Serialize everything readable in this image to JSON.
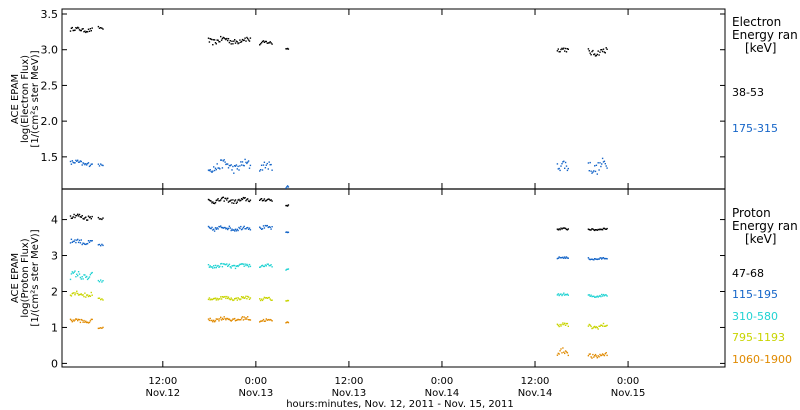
{
  "chart_data": [
    {
      "type": "scatter",
      "panel": "electron",
      "ylabel": [
        "ACE EPAM",
        "log(Electron Flux)",
        "[1/(cm²s ster MeV)]"
      ],
      "ylim": [
        1.05,
        3.57
      ],
      "yticks": [
        "1.5",
        "2.0",
        "2.5",
        "3.0",
        "3.5"
      ],
      "ytick_values": [
        1.5,
        2.0,
        2.5,
        3.0,
        3.5
      ],
      "legend_title": [
        "Electron",
        "Energy ran",
        "[keV]"
      ],
      "series": [
        {
          "name": "38-53",
          "color": "#000000",
          "segments": [
            {
              "x0": 0.0,
              "x1": 2.8,
              "y": 3.29,
              "jitter": 0.03
            },
            {
              "x0": 3.6,
              "x1": 4.2,
              "y": 3.31,
              "jitter": 0.02
            },
            {
              "x0": 17.8,
              "x1": 23.2,
              "y": 3.14,
              "jitter": 0.05
            },
            {
              "x0": 24.4,
              "x1": 26.0,
              "y": 3.1,
              "jitter": 0.03
            },
            {
              "x0": 27.8,
              "x1": 28.1,
              "y": 3.02,
              "jitter": 0.01
            },
            {
              "x0": 62.8,
              "x1": 64.2,
              "y": 3.0,
              "jitter": 0.04
            },
            {
              "x0": 66.8,
              "x1": 69.2,
              "y": 2.98,
              "jitter": 0.05
            }
          ]
        },
        {
          "name": "175-315",
          "color": "#1565c8",
          "segments": [
            {
              "x0": 0.0,
              "x1": 2.8,
              "y": 1.42,
              "jitter": 0.04
            },
            {
              "x0": 3.6,
              "x1": 4.2,
              "y": 1.39,
              "jitter": 0.02
            },
            {
              "x0": 17.8,
              "x1": 23.2,
              "y": 1.38,
              "jitter": 0.08
            },
            {
              "x0": 24.4,
              "x1": 26.0,
              "y": 1.36,
              "jitter": 0.07
            },
            {
              "x0": 27.8,
              "x1": 28.1,
              "y": 1.08,
              "jitter": 0.02
            },
            {
              "x0": 62.8,
              "x1": 64.2,
              "y": 1.36,
              "jitter": 0.1
            },
            {
              "x0": 66.8,
              "x1": 69.2,
              "y": 1.38,
              "jitter": 0.1
            }
          ]
        }
      ]
    },
    {
      "type": "scatter",
      "panel": "proton",
      "ylabel": [
        "ACE EPAM",
        "log(Proton Flux)",
        "[1/(cm²s ster MeV)]"
      ],
      "ylim": [
        -0.1,
        4.85
      ],
      "yticks": [
        "0",
        "1",
        "2",
        "3",
        "4"
      ],
      "ytick_values": [
        0,
        1,
        2,
        3,
        4
      ],
      "legend_title": [
        "Proton",
        "Energy ran",
        "[keV]"
      ],
      "series": [
        {
          "name": "47-68",
          "color": "#000000",
          "segments": [
            {
              "x0": 0.0,
              "x1": 2.8,
              "y": 4.1,
              "jitter": 0.08
            },
            {
              "x0": 3.6,
              "x1": 4.2,
              "y": 4.05,
              "jitter": 0.04
            },
            {
              "x0": 17.8,
              "x1": 23.2,
              "y": 4.55,
              "jitter": 0.07
            },
            {
              "x0": 24.4,
              "x1": 26.0,
              "y": 4.55,
              "jitter": 0.06
            },
            {
              "x0": 27.8,
              "x1": 28.1,
              "y": 4.4,
              "jitter": 0.02
            },
            {
              "x0": 62.8,
              "x1": 64.2,
              "y": 3.75,
              "jitter": 0.03
            },
            {
              "x0": 66.8,
              "x1": 69.2,
              "y": 3.75,
              "jitter": 0.03
            }
          ]
        },
        {
          "name": "115-195",
          "color": "#1565c8",
          "segments": [
            {
              "x0": 0.0,
              "x1": 2.8,
              "y": 3.4,
              "jitter": 0.08
            },
            {
              "x0": 3.6,
              "x1": 4.2,
              "y": 3.3,
              "jitter": 0.04
            },
            {
              "x0": 17.8,
              "x1": 23.2,
              "y": 3.78,
              "jitter": 0.07
            },
            {
              "x0": 24.4,
              "x1": 26.0,
              "y": 3.78,
              "jitter": 0.06
            },
            {
              "x0": 27.8,
              "x1": 28.1,
              "y": 3.65,
              "jitter": 0.02
            },
            {
              "x0": 62.8,
              "x1": 64.2,
              "y": 2.95,
              "jitter": 0.03
            },
            {
              "x0": 66.8,
              "x1": 69.2,
              "y": 2.93,
              "jitter": 0.03
            }
          ]
        },
        {
          "name": "310-580",
          "color": "#22d3d3",
          "segments": [
            {
              "x0": 0.0,
              "x1": 2.8,
              "y": 2.45,
              "jitter": 0.12
            },
            {
              "x0": 3.6,
              "x1": 4.2,
              "y": 2.3,
              "jitter": 0.04
            },
            {
              "x0": 17.8,
              "x1": 23.2,
              "y": 2.73,
              "jitter": 0.06
            },
            {
              "x0": 24.4,
              "x1": 26.0,
              "y": 2.72,
              "jitter": 0.05
            },
            {
              "x0": 27.8,
              "x1": 28.1,
              "y": 2.62,
              "jitter": 0.02
            },
            {
              "x0": 62.8,
              "x1": 64.2,
              "y": 1.92,
              "jitter": 0.04
            },
            {
              "x0": 66.8,
              "x1": 69.2,
              "y": 1.9,
              "jitter": 0.04
            }
          ]
        },
        {
          "name": "795-1193",
          "color": "#c8d400",
          "segments": [
            {
              "x0": 0.0,
              "x1": 2.8,
              "y": 1.95,
              "jitter": 0.08
            },
            {
              "x0": 3.6,
              "x1": 4.2,
              "y": 1.8,
              "jitter": 0.03
            },
            {
              "x0": 17.8,
              "x1": 23.2,
              "y": 1.83,
              "jitter": 0.05
            },
            {
              "x0": 24.4,
              "x1": 26.0,
              "y": 1.8,
              "jitter": 0.05
            },
            {
              "x0": 27.8,
              "x1": 28.1,
              "y": 1.75,
              "jitter": 0.02
            },
            {
              "x0": 62.8,
              "x1": 64.2,
              "y": 1.08,
              "jitter": 0.06
            },
            {
              "x0": 66.8,
              "x1": 69.2,
              "y": 1.05,
              "jitter": 0.07
            }
          ]
        },
        {
          "name": "1060-1900",
          "color": "#e08a00",
          "segments": [
            {
              "x0": 0.0,
              "x1": 2.8,
              "y": 1.2,
              "jitter": 0.06
            },
            {
              "x0": 3.6,
              "x1": 4.2,
              "y": 1.0,
              "jitter": 0.03
            },
            {
              "x0": 17.8,
              "x1": 23.2,
              "y": 1.25,
              "jitter": 0.06
            },
            {
              "x0": 24.4,
              "x1": 26.0,
              "y": 1.2,
              "jitter": 0.05
            },
            {
              "x0": 27.8,
              "x1": 28.1,
              "y": 1.15,
              "jitter": 0.02
            },
            {
              "x0": 62.8,
              "x1": 64.2,
              "y": 0.32,
              "jitter": 0.1
            },
            {
              "x0": 66.8,
              "x1": 69.2,
              "y": 0.24,
              "jitter": 0.08
            }
          ]
        }
      ]
    }
  ],
  "x_axis": {
    "xlabel": "hours:minutes, Nov. 12, 2011 - Nov. 15, 2011",
    "xlim": [
      -1.0,
      84.5
    ],
    "ticks": [
      {
        "x": 12,
        "time": "12:00",
        "date": "Nov.12"
      },
      {
        "x": 24,
        "time": "0:00",
        "date": "Nov.13"
      },
      {
        "x": 36,
        "time": "12:00",
        "date": "Nov.13"
      },
      {
        "x": 48,
        "time": "0:00",
        "date": "Nov.14"
      },
      {
        "x": 60,
        "time": "12:00",
        "date": "Nov.14"
      },
      {
        "x": 72,
        "time": "0:00",
        "date": "Nov.15"
      }
    ]
  }
}
